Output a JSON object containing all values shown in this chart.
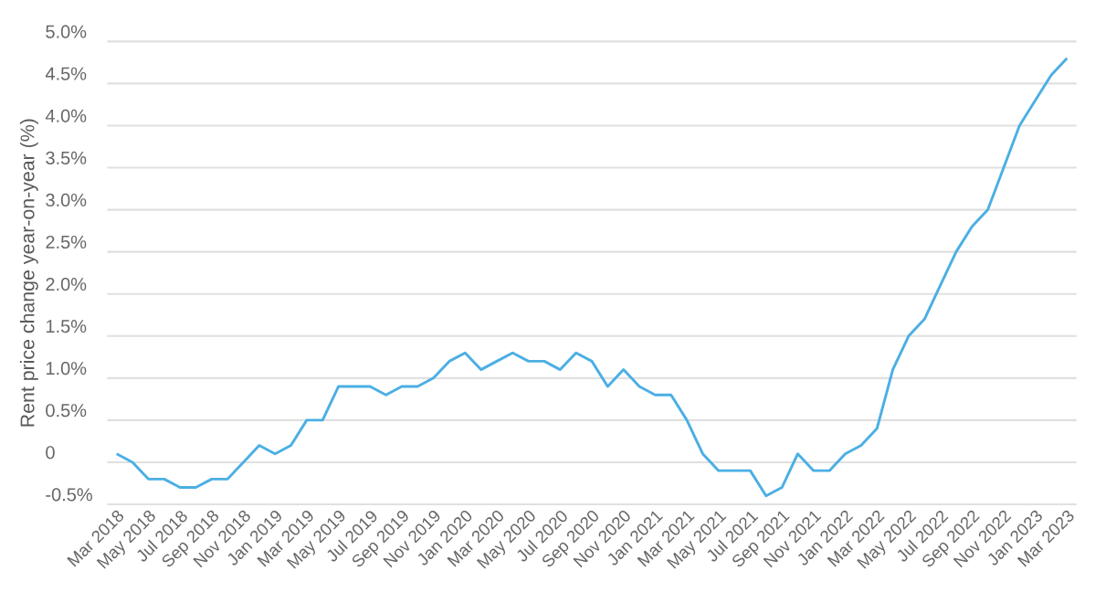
{
  "chart_data": {
    "type": "line",
    "ylabel": "Rent price change year-on-year (%)",
    "categories": [
      "Mar 2018",
      null,
      "May 2018",
      null,
      "Jul 2018",
      null,
      "Sep 2018",
      null,
      "Nov 2018",
      null,
      "Jan 2019",
      null,
      "Mar 2019",
      null,
      "May 2019",
      null,
      "Jul 2019",
      null,
      "Sep 2019",
      null,
      "Nov 2019",
      null,
      "Jan 2020",
      null,
      "Mar 2020",
      null,
      "May 2020",
      null,
      "Jul 2020",
      null,
      "Sep 2020",
      null,
      "Nov 2020",
      null,
      "Jan 2021",
      null,
      "Mar 2021",
      null,
      "May 2021",
      null,
      "Jul 2021",
      null,
      "Sep 2021",
      null,
      "Nov 2021",
      null,
      "Jan 2022",
      null,
      "Mar 2022",
      null,
      "May 2022",
      null,
      "Jul 2022",
      null,
      "Sep 2022",
      null,
      "Nov 2022",
      null,
      "Jan 2023",
      null,
      "Mar 2023"
    ],
    "series": [
      {
        "color": "#4bafe3",
        "values": [
          0.1,
          0.0,
          -0.2,
          -0.2,
          -0.3,
          -0.3,
          -0.2,
          -0.2,
          0.0,
          0.2,
          0.1,
          0.2,
          0.5,
          0.5,
          0.9,
          0.9,
          0.9,
          0.8,
          0.9,
          0.9,
          1.0,
          1.2,
          1.3,
          1.1,
          1.2,
          1.3,
          1.2,
          1.2,
          1.1,
          1.3,
          1.2,
          0.9,
          1.1,
          0.9,
          0.8,
          0.8,
          0.5,
          0.1,
          -0.1,
          -0.1,
          -0.1,
          -0.4,
          -0.3,
          0.1,
          -0.1,
          -0.1,
          0.1,
          0.2,
          0.4,
          1.1,
          1.5,
          1.7,
          2.1,
          2.5,
          2.8,
          3.0,
          3.5,
          4.0,
          4.3,
          4.6,
          4.8
        ]
      }
    ],
    "ylim": [
      -0.5,
      5.0
    ],
    "yticks": [
      {
        "value": -0.5,
        "label": "-0.5%"
      },
      0,
      {
        "value": 0.5,
        "label": "0.5%"
      },
      {
        "value": 1.0,
        "label": "1.0%"
      },
      {
        "value": 1.5,
        "label": "1.5%"
      },
      {
        "value": 2.0,
        "label": "2.0%"
      },
      {
        "value": 2.5,
        "label": "2.5%"
      },
      {
        "value": 3.0,
        "label": "3.0%"
      },
      {
        "value": 3.5,
        "label": "3.5%"
      },
      {
        "value": 4.0,
        "label": "4.0%"
      },
      {
        "value": 4.5,
        "label": "4.5%"
      },
      {
        "value": 5.0,
        "label": "5.0%"
      }
    ],
    "grid": "y",
    "marker": "none",
    "line_style": "solid"
  }
}
